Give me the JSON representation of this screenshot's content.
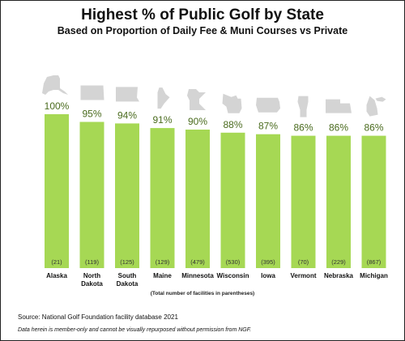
{
  "chart_data": {
    "type": "bar",
    "title": "Highest % of Public Golf by State",
    "subtitle": "Based on Proportion of Daily Fee & Muni Courses vs Private",
    "categories": [
      "Alaska",
      "North Dakota",
      "South Dakota",
      "Maine",
      "Minnesota",
      "Wisconsin",
      "Iowa",
      "Vermont",
      "Nebraska",
      "Michigan"
    ],
    "values": [
      100,
      95,
      94,
      91,
      90,
      88,
      87,
      86,
      86,
      86
    ],
    "value_labels": [
      "100%",
      "95%",
      "94%",
      "91%",
      "90%",
      "88%",
      "87%",
      "86%",
      "86%",
      "86%"
    ],
    "facility_counts": [
      "(21)",
      "(119)",
      "(125)",
      "(129)",
      "(479)",
      "(530)",
      "(395)",
      "(70)",
      "(229)",
      "(867)"
    ],
    "note": "(Total number of facilities in parentheses)",
    "ylim": [
      0,
      100
    ],
    "grid": false,
    "bar_color": "#a6d854",
    "state_icon_color": "#d4d4d4",
    "value_label_color": "#4a6b1e",
    "state_icons": [
      "alaska-icon",
      "north-dakota-icon",
      "south-dakota-icon",
      "maine-icon",
      "minnesota-icon",
      "wisconsin-icon",
      "iowa-icon",
      "vermont-icon",
      "nebraska-icon",
      "michigan-icon"
    ]
  },
  "footer": {
    "source": "Source: National Golf Foundation facility database 2021",
    "disclaimer": "Data herein is member-only and cannot be visually repurposed without permission from NGF."
  }
}
